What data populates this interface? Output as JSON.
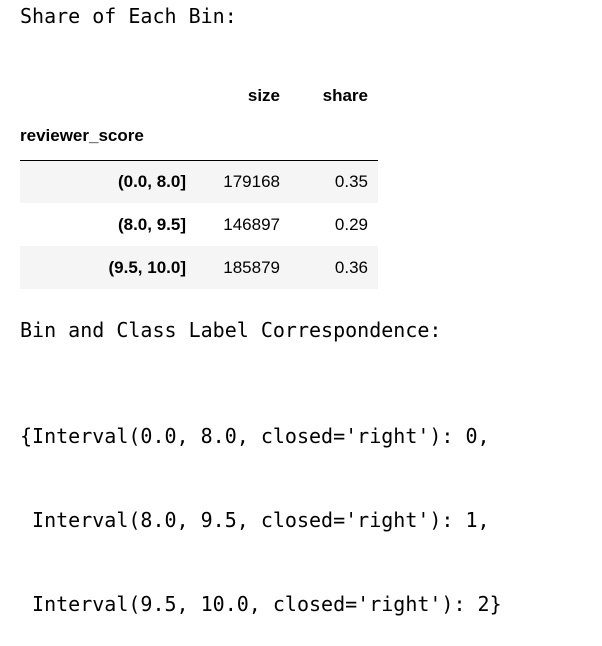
{
  "outputs": {
    "share_heading": "Share of Each Bin:",
    "bins_heading": "Bin and Class Label Correspondence:"
  },
  "table": {
    "columns": [
      "size",
      "share"
    ],
    "index_name": "reviewer_score",
    "rows": [
      {
        "index": "(0.0, 8.0]",
        "size": "179168",
        "share": "0.35"
      },
      {
        "index": "(8.0, 9.5]",
        "size": "146897",
        "share": "0.29"
      },
      {
        "index": "(9.5, 10.0]",
        "size": "185879",
        "share": "0.36"
      }
    ]
  },
  "mapping": {
    "lines": [
      "{Interval(0.0, 8.0, closed='right'): 0,",
      " Interval(8.0, 9.5, closed='right'): 1,",
      " Interval(9.5, 10.0, closed='right'): 2}"
    ]
  }
}
